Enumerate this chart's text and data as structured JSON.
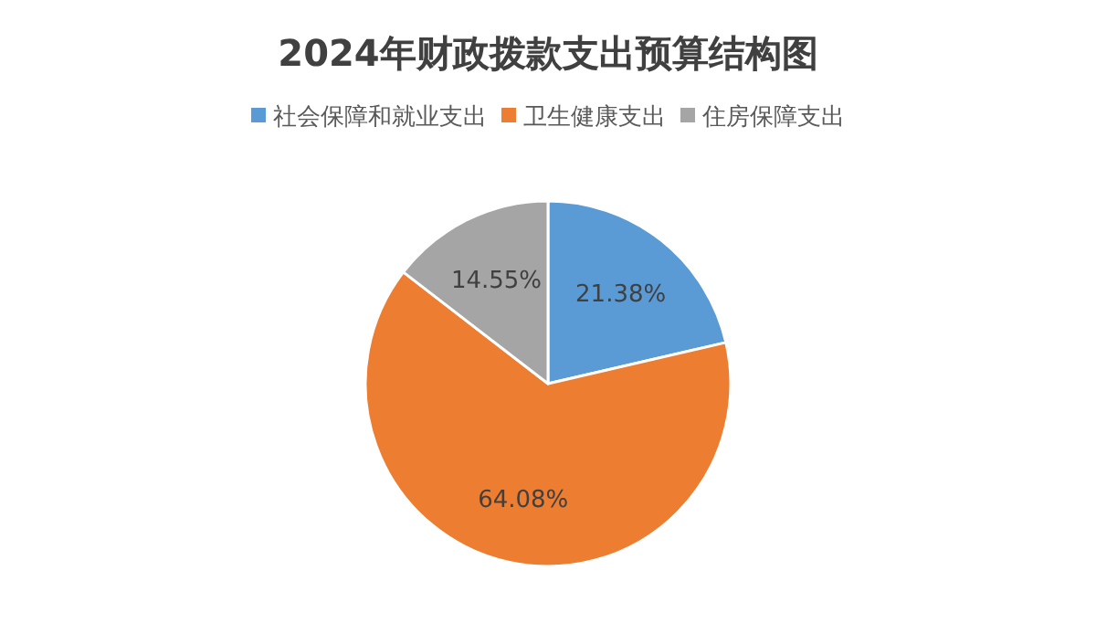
{
  "chart_data": {
    "type": "pie",
    "title": "2024年财政拨款支出预算结构图",
    "categories": [
      "社会保障和就业支出",
      "卫生健康支出",
      "住房保障支出"
    ],
    "values": [
      21.38,
      64.08,
      14.55
    ],
    "colors": [
      "#5b9bd5",
      "#ed7d31",
      "#a5a5a5"
    ],
    "value_labels": [
      "21.38%",
      "64.08%",
      "14.55%"
    ],
    "legend": "top"
  }
}
